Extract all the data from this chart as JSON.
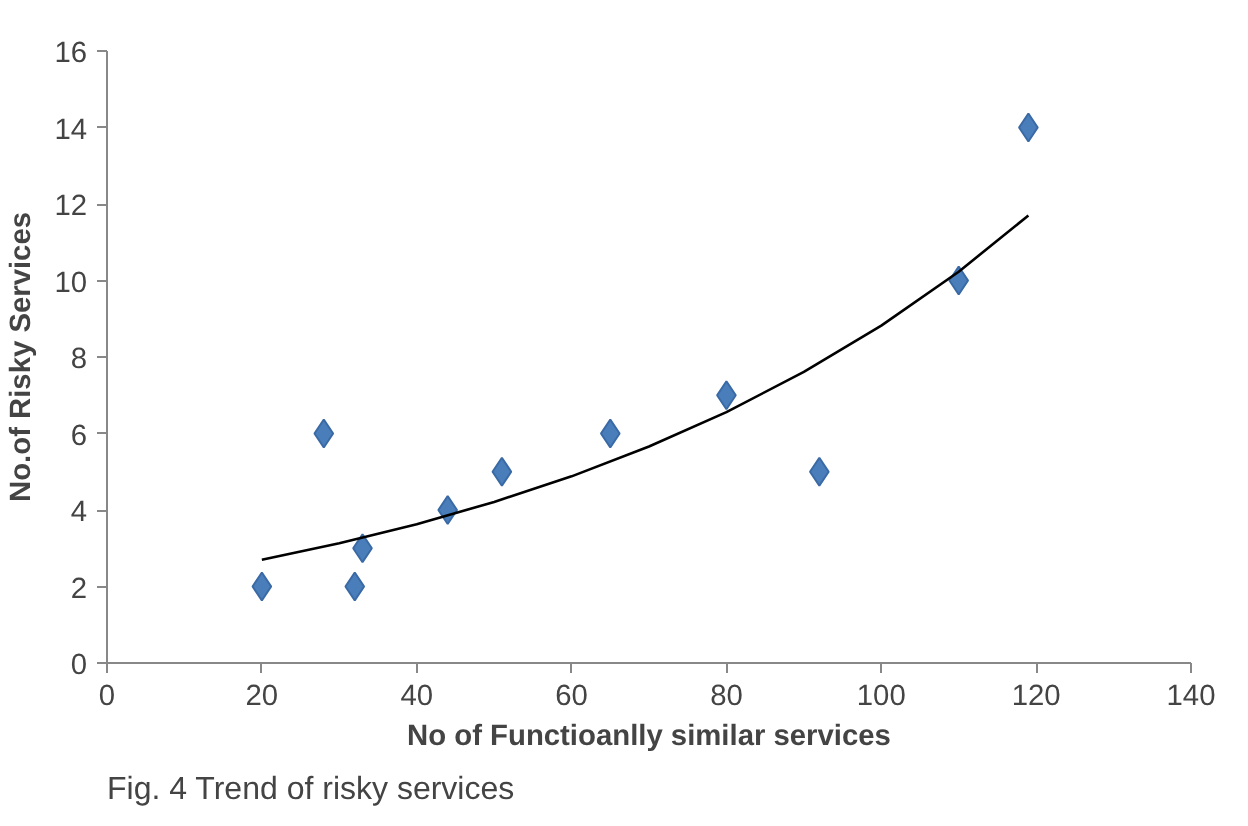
{
  "chart_data": {
    "type": "scatter",
    "xlabel": "No of Functioanlly similar services",
    "ylabel": "No.of Risky Services",
    "annotations": [
      "Fig. 4 Trend of risky services"
    ],
    "xlim": [
      0,
      140
    ],
    "ylim": [
      0,
      16
    ],
    "xticks": [
      0,
      20,
      40,
      60,
      80,
      100,
      120,
      140
    ],
    "yticks": [
      0,
      2,
      4,
      6,
      8,
      10,
      12,
      14,
      16
    ],
    "grid": false,
    "marker": "diamond",
    "series": [
      {
        "color": "#4a7ebb",
        "x": [
          20,
          28,
          32,
          33,
          44,
          51,
          65,
          80,
          92,
          110,
          119
        ],
        "values": [
          2,
          6,
          2,
          3,
          4,
          5,
          6,
          7,
          5,
          10,
          14
        ]
      },
      {
        "type": "line",
        "color": "#000000",
        "line_style": "solid",
        "marker": "none",
        "x": [
          20,
          30,
          40,
          50,
          60,
          70,
          80,
          90,
          100,
          110,
          119
        ],
        "values": [
          2.7,
          3.13,
          3.63,
          4.21,
          4.88,
          5.66,
          6.56,
          7.61,
          8.82,
          10.23,
          11.7
        ]
      }
    ]
  }
}
